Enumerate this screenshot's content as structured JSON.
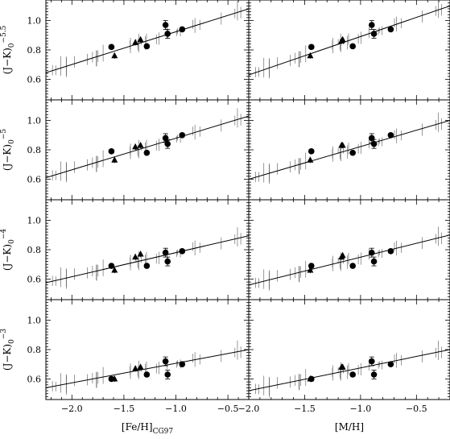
{
  "chart_data": [
    {
      "type": "scatter",
      "panel": "row1-left",
      "ylabel": "(J−K)",
      "ylabel_sub": "0",
      "ylabel_sup": "−5.5",
      "xlabel": "",
      "xlim": [
        -2.25,
        -0.3
      ],
      "ylim": [
        0.46,
        1.14
      ],
      "fit_line": [
        [
          -2.25,
          0.645
        ],
        [
          -0.3,
          1.08
        ]
      ],
      "points_circle": [
        {
          "x": -1.62,
          "y": 0.82,
          "err": 0.01
        },
        {
          "x": -1.1,
          "y": 0.97,
          "err": 0.03
        },
        {
          "x": -1.28,
          "y": 0.825,
          "err": 0.01
        },
        {
          "x": -1.08,
          "y": 0.91,
          "err": 0.03
        },
        {
          "x": -0.94,
          "y": 0.94,
          "err": 0.01
        }
      ],
      "points_triangle": [
        {
          "x": -1.59,
          "y": 0.76,
          "err": 0.02
        },
        {
          "x": -1.39,
          "y": 0.85,
          "err": 0.02
        },
        {
          "x": -1.34,
          "y": 0.87,
          "err": 0.02
        }
      ],
      "ticks_x": [
        -2.0,
        -1.5,
        -1.0,
        -0.5
      ],
      "ticks_x_labels": [
        "",
        "",
        "",
        ""
      ],
      "ticks_y": [
        0.6,
        0.8,
        1.0
      ],
      "ticks_y_labels": [
        "0.6",
        "0.8",
        "1.0"
      ]
    },
    {
      "type": "scatter",
      "panel": "row1-right",
      "xlabel": "",
      "xlim": [
        -2.0,
        -0.2
      ],
      "ylim": [
        0.46,
        1.14
      ],
      "fit_line": [
        [
          -2.0,
          0.63
        ],
        [
          -0.2,
          1.1
        ]
      ],
      "points_circle": [
        {
          "x": -1.44,
          "y": 0.82,
          "err": 0.01
        },
        {
          "x": -0.9,
          "y": 0.97,
          "err": 0.03
        },
        {
          "x": -1.07,
          "y": 0.825,
          "err": 0.01
        },
        {
          "x": -0.88,
          "y": 0.91,
          "err": 0.03
        },
        {
          "x": -0.73,
          "y": 0.94,
          "err": 0.01
        }
      ],
      "points_triangle": [
        {
          "x": -1.45,
          "y": 0.76,
          "err": 0.02
        },
        {
          "x": -1.16,
          "y": 0.87,
          "err": 0.02
        },
        {
          "x": -1.17,
          "y": 0.86,
          "err": 0.02
        }
      ],
      "ticks_x": [
        -2.0,
        -1.5,
        -1.0,
        -0.5
      ],
      "ticks_x_labels": [
        "",
        "",
        "",
        ""
      ],
      "ticks_y": [
        0.6,
        0.8,
        1.0
      ],
      "ticks_y_labels": [
        "",
        "",
        ""
      ]
    },
    {
      "type": "scatter",
      "panel": "row2-left",
      "ylabel": "(J−K)",
      "ylabel_sub": "0",
      "ylabel_sup": "−5",
      "xlabel": "",
      "xlim": [
        -2.25,
        -0.3
      ],
      "ylim": [
        0.46,
        1.14
      ],
      "fit_line": [
        [
          -2.25,
          0.61
        ],
        [
          -0.3,
          1.03
        ]
      ],
      "points_circle": [
        {
          "x": -1.62,
          "y": 0.79,
          "err": 0.01
        },
        {
          "x": -1.1,
          "y": 0.88,
          "err": 0.03
        },
        {
          "x": -1.28,
          "y": 0.78,
          "err": 0.01
        },
        {
          "x": -1.08,
          "y": 0.84,
          "err": 0.03
        },
        {
          "x": -0.94,
          "y": 0.9,
          "err": 0.01
        }
      ],
      "points_triangle": [
        {
          "x": -1.59,
          "y": 0.73,
          "err": 0.02
        },
        {
          "x": -1.39,
          "y": 0.82,
          "err": 0.02
        },
        {
          "x": -1.34,
          "y": 0.83,
          "err": 0.02
        }
      ],
      "ticks_x": [
        -2.0,
        -1.5,
        -1.0,
        -0.5
      ],
      "ticks_x_labels": [
        "",
        "",
        "",
        ""
      ],
      "ticks_y": [
        0.6,
        0.8,
        1.0
      ],
      "ticks_y_labels": [
        "0.6",
        "0.8",
        "1.0"
      ]
    },
    {
      "type": "scatter",
      "panel": "row2-right",
      "xlabel": "",
      "xlim": [
        -2.0,
        -0.2
      ],
      "ylim": [
        0.46,
        1.14
      ],
      "fit_line": [
        [
          -2.0,
          0.6
        ],
        [
          -0.2,
          1.0
        ]
      ],
      "points_circle": [
        {
          "x": -1.44,
          "y": 0.79,
          "err": 0.01
        },
        {
          "x": -0.9,
          "y": 0.88,
          "err": 0.03
        },
        {
          "x": -1.07,
          "y": 0.78,
          "err": 0.01
        },
        {
          "x": -0.88,
          "y": 0.84,
          "err": 0.03
        },
        {
          "x": -0.73,
          "y": 0.9,
          "err": 0.01
        }
      ],
      "points_triangle": [
        {
          "x": -1.45,
          "y": 0.73,
          "err": 0.02
        },
        {
          "x": -1.16,
          "y": 0.83,
          "err": 0.02
        },
        {
          "x": -1.17,
          "y": 0.83,
          "err": 0.02
        }
      ],
      "ticks_x": [
        -2.0,
        -1.5,
        -1.0,
        -0.5
      ],
      "ticks_x_labels": [
        "",
        "",
        "",
        ""
      ],
      "ticks_y": [
        0.6,
        0.8,
        1.0
      ],
      "ticks_y_labels": [
        "",
        "",
        ""
      ]
    },
    {
      "type": "scatter",
      "panel": "row3-left",
      "ylabel": "(J−K)",
      "ylabel_sub": "0",
      "ylabel_sup": "−4",
      "xlabel": "",
      "xlim": [
        -2.25,
        -0.3
      ],
      "ylim": [
        0.46,
        1.14
      ],
      "fit_line": [
        [
          -2.25,
          0.575
        ],
        [
          -0.3,
          0.895
        ]
      ],
      "points_circle": [
        {
          "x": -1.62,
          "y": 0.69,
          "err": 0.01
        },
        {
          "x": -1.1,
          "y": 0.78,
          "err": 0.03
        },
        {
          "x": -1.28,
          "y": 0.69,
          "err": 0.01
        },
        {
          "x": -1.08,
          "y": 0.72,
          "err": 0.03
        },
        {
          "x": -0.94,
          "y": 0.79,
          "err": 0.01
        }
      ],
      "points_triangle": [
        {
          "x": -1.59,
          "y": 0.66,
          "err": 0.02
        },
        {
          "x": -1.39,
          "y": 0.75,
          "err": 0.02
        },
        {
          "x": -1.34,
          "y": 0.77,
          "err": 0.02
        }
      ],
      "ticks_x": [
        -2.0,
        -1.5,
        -1.0,
        -0.5
      ],
      "ticks_x_labels": [
        "",
        "",
        "",
        ""
      ],
      "ticks_y": [
        0.6,
        0.8,
        1.0
      ],
      "ticks_y_labels": [
        "0.6",
        "0.8",
        "1.0"
      ]
    },
    {
      "type": "scatter",
      "panel": "row3-right",
      "xlabel": "",
      "xlim": [
        -2.0,
        -0.2
      ],
      "ylim": [
        0.46,
        1.14
      ],
      "fit_line": [
        [
          -2.0,
          0.56
        ],
        [
          -0.2,
          0.9
        ]
      ],
      "points_circle": [
        {
          "x": -1.44,
          "y": 0.69,
          "err": 0.01
        },
        {
          "x": -0.9,
          "y": 0.78,
          "err": 0.03
        },
        {
          "x": -1.07,
          "y": 0.69,
          "err": 0.01
        },
        {
          "x": -0.88,
          "y": 0.72,
          "err": 0.03
        },
        {
          "x": -0.73,
          "y": 0.79,
          "err": 0.01
        }
      ],
      "points_triangle": [
        {
          "x": -1.45,
          "y": 0.66,
          "err": 0.02
        },
        {
          "x": -1.16,
          "y": 0.76,
          "err": 0.02
        },
        {
          "x": -1.17,
          "y": 0.75,
          "err": 0.02
        }
      ],
      "ticks_x": [
        -2.0,
        -1.5,
        -1.0,
        -0.5
      ],
      "ticks_x_labels": [
        "",
        "",
        "",
        ""
      ],
      "ticks_y": [
        0.6,
        0.8,
        1.0
      ],
      "ticks_y_labels": [
        "",
        "",
        ""
      ]
    },
    {
      "type": "scatter",
      "panel": "row4-left",
      "ylabel": "(J−K)",
      "ylabel_sub": "0",
      "ylabel_sup": "−3",
      "xlabel": "[Fe/H]",
      "xlabel_sub": "CG97",
      "xlim": [
        -2.25,
        -0.3
      ],
      "ylim": [
        0.46,
        1.14
      ],
      "fit_line": [
        [
          -2.25,
          0.54
        ],
        [
          -0.3,
          0.8
        ]
      ],
      "points_circle": [
        {
          "x": -1.62,
          "y": 0.6,
          "err": 0.01
        },
        {
          "x": -1.1,
          "y": 0.72,
          "err": 0.03
        },
        {
          "x": -1.28,
          "y": 0.63,
          "err": 0.01
        },
        {
          "x": -1.08,
          "y": 0.63,
          "err": 0.03
        },
        {
          "x": -0.94,
          "y": 0.7,
          "err": 0.01
        }
      ],
      "points_triangle": [
        {
          "x": -1.59,
          "y": 0.6,
          "err": 0.02
        },
        {
          "x": -1.39,
          "y": 0.67,
          "err": 0.02
        },
        {
          "x": -1.34,
          "y": 0.68,
          "err": 0.02
        }
      ],
      "ticks_x": [
        -2.0,
        -1.5,
        -1.0,
        -0.5
      ],
      "ticks_x_labels": [
        "−2.0",
        "−1.5",
        "−1.0",
        "−0.5"
      ],
      "ticks_y": [
        0.6,
        0.8,
        1.0
      ],
      "ticks_y_labels": [
        "0.6",
        "0.8",
        "1.0"
      ]
    },
    {
      "type": "scatter",
      "panel": "row4-right",
      "xlabel": "[M/H]",
      "xlim": [
        -2.0,
        -0.2
      ],
      "ylim": [
        0.46,
        1.14
      ],
      "fit_line": [
        [
          -2.0,
          0.52
        ],
        [
          -0.2,
          0.8
        ]
      ],
      "points_circle": [
        {
          "x": -1.44,
          "y": 0.6,
          "err": 0.01
        },
        {
          "x": -0.9,
          "y": 0.72,
          "err": 0.03
        },
        {
          "x": -1.07,
          "y": 0.63,
          "err": 0.01
        },
        {
          "x": -0.88,
          "y": 0.63,
          "err": 0.03
        },
        {
          "x": -0.73,
          "y": 0.7,
          "err": 0.01
        }
      ],
      "points_triangle": [
        {
          "x": -1.45,
          "y": 0.6,
          "err": 0.02
        },
        {
          "x": -1.16,
          "y": 0.68,
          "err": 0.02
        },
        {
          "x": -1.17,
          "y": 0.68,
          "err": 0.02
        }
      ],
      "ticks_x": [
        -2.0,
        -1.5,
        -1.0,
        -0.5
      ],
      "ticks_x_labels": [
        "−2.0",
        "−1.5",
        "−1.0",
        "−0.5"
      ],
      "ticks_y": [
        0.6,
        0.8,
        1.0
      ],
      "ticks_y_labels": [
        "",
        "",
        ""
      ]
    }
  ]
}
